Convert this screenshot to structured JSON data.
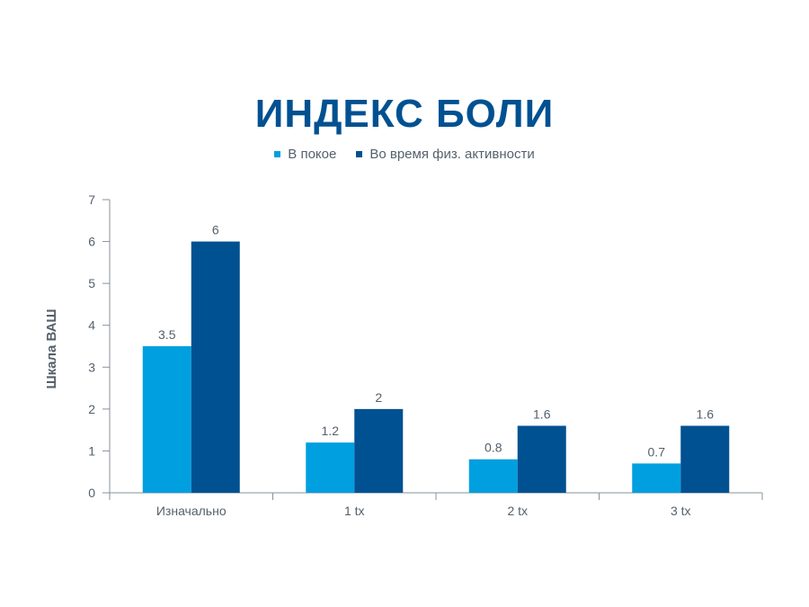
{
  "colors": {
    "title": "#005191",
    "series_rest": "#009fdf",
    "series_activity": "#005191",
    "axis": "#8a9199",
    "text": "#55606b"
  },
  "chart_data": {
    "type": "bar",
    "title": "ИНДЕКС БОЛИ",
    "xlabel": "",
    "ylabel": "Шкала ВАШ",
    "categories": [
      "Изначально",
      "1 tx",
      "2 tx",
      "3 tx"
    ],
    "series": [
      {
        "name": "В покое",
        "values": [
          3.5,
          1.2,
          0.8,
          0.7
        ],
        "value_labels": [
          "3.5",
          "1.2",
          "0.8",
          "0.7"
        ],
        "color": "#009fdf"
      },
      {
        "name": "Во время физ. активности",
        "values": [
          6,
          2,
          1.6,
          1.6
        ],
        "value_labels": [
          "6",
          "2",
          "1.6",
          "1.6"
        ],
        "color": "#005191"
      }
    ],
    "ylim": [
      0,
      7
    ],
    "yticks": [
      0,
      1,
      2,
      3,
      4,
      5,
      6,
      7
    ],
    "grid": false,
    "legend_position": "top-center"
  }
}
